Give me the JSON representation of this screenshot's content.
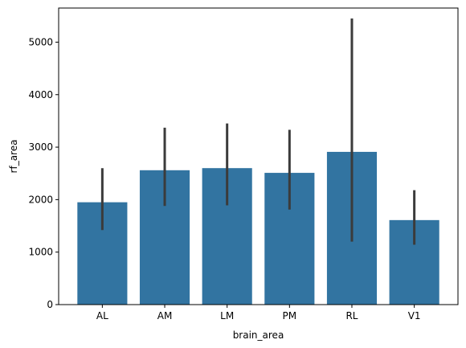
{
  "chart_data": {
    "type": "bar",
    "title": "",
    "xlabel": "brain_area",
    "ylabel": "rf_area",
    "categories": [
      "AL",
      "AM",
      "LM",
      "PM",
      "RL",
      "V1"
    ],
    "values": [
      1950,
      2560,
      2600,
      2510,
      2910,
      1610
    ],
    "error_low": [
      1420,
      1880,
      1890,
      1810,
      1200,
      1140
    ],
    "error_high": [
      2600,
      3370,
      3450,
      3330,
      5450,
      2180
    ],
    "ylim": [
      0,
      5650
    ],
    "yticks": [
      0,
      1000,
      2000,
      3000,
      4000,
      5000
    ],
    "bar_color": "#3274a1",
    "error_color": "#3b3b3b",
    "grid": false,
    "legend": "none"
  }
}
